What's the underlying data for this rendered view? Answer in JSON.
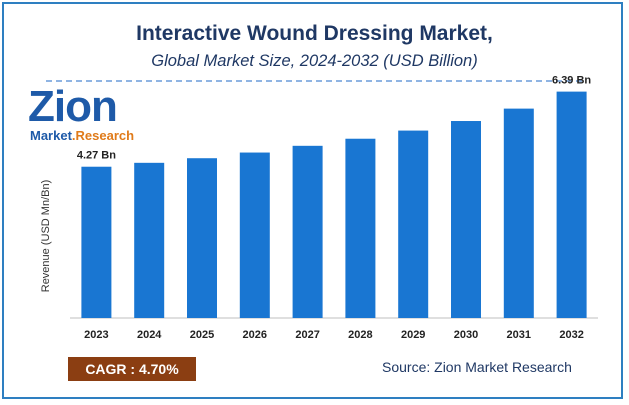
{
  "header": {
    "title": "Interactive Wound Dressing Market,",
    "subtitle": "Global Market Size, 2024-2032 (USD Billion)"
  },
  "logo": {
    "brand": "Zion",
    "sub_brand": "Market.Research"
  },
  "footer": {
    "cagr": "CAGR : 4.70%",
    "source": "Source: Zion Market Research"
  },
  "colors": {
    "bar": "#1976d2",
    "title": "#1f3864",
    "cagr_bg": "#8b3e12",
    "frame": "#2e7fc1"
  },
  "chart_data": {
    "type": "bar",
    "title": "Interactive Wound Dressing Market,",
    "subtitle": "Global Market Size, 2024-2032 (USD Billion)",
    "xlabel": "",
    "ylabel": "Revenue (USD Mn/Bn)",
    "categories": [
      "2023",
      "2024",
      "2025",
      "2026",
      "2027",
      "2028",
      "2029",
      "2030",
      "2031",
      "2032"
    ],
    "values": [
      4.27,
      4.38,
      4.51,
      4.67,
      4.86,
      5.06,
      5.29,
      5.56,
      5.91,
      6.39
    ],
    "data_labels": [
      {
        "index": 0,
        "text": "4.27 Bn"
      },
      {
        "index": 9,
        "text": "6.39 Bn"
      }
    ],
    "ylim": [
      0,
      7.0
    ],
    "grid": false,
    "legend": "none"
  }
}
